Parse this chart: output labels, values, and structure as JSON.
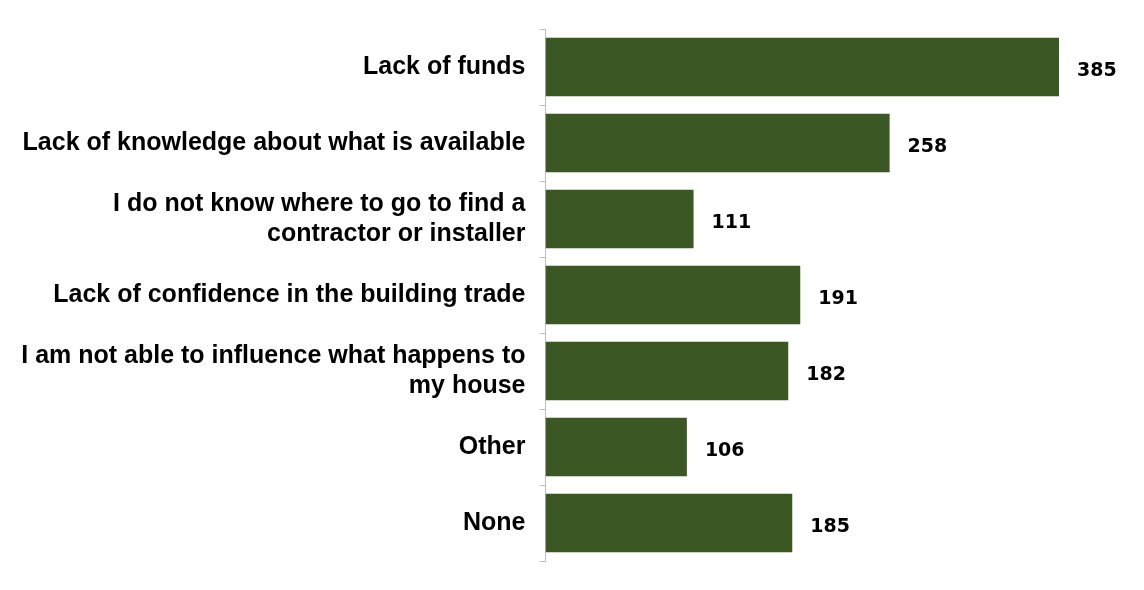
{
  "chart_data": {
    "type": "bar",
    "orientation": "horizontal",
    "categories": [
      "Lack of funds",
      "Lack of knowledge about what is available",
      "I do not know where to go to find a contractor or installer",
      "Lack of confidence in the building trade",
      "I am not able to influence what happens to my house",
      "Other",
      "None"
    ],
    "values": [
      385,
      258,
      111,
      191,
      182,
      106,
      185
    ],
    "color": "#3a5724",
    "data_labels": true
  }
}
